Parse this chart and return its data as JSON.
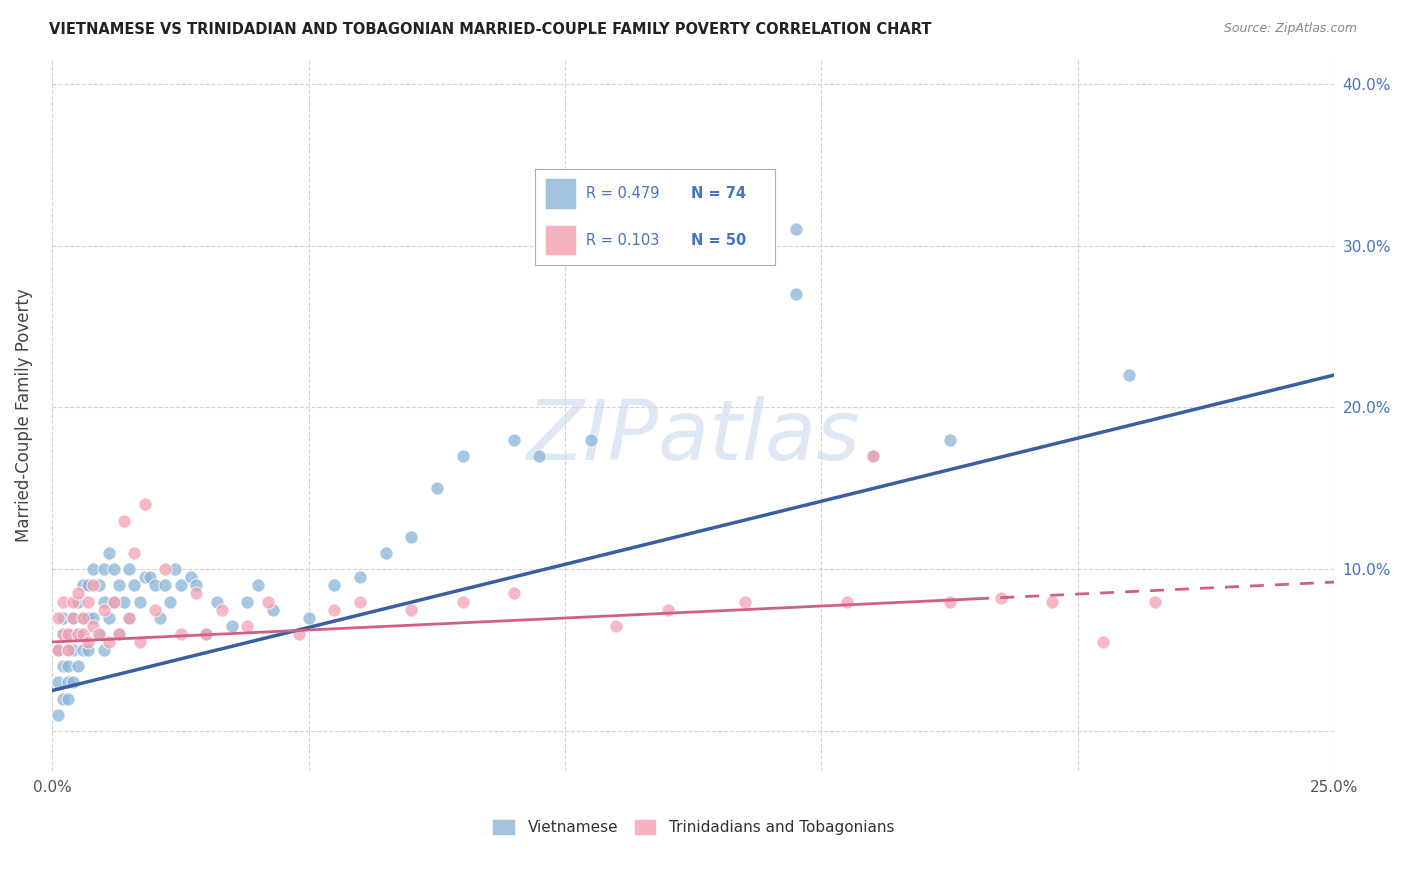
{
  "title": "VIETNAMESE VS TRINIDADIAN AND TOBAGONIAN MARRIED-COUPLE FAMILY POVERTY CORRELATION CHART",
  "source": "Source: ZipAtlas.com",
  "ylabel": "Married-Couple Family Poverty",
  "x_min": 0.0,
  "x_max": 0.25,
  "y_min": -0.025,
  "y_max": 0.415,
  "watermark_text": "ZIPatlas",
  "vietnamese_color": "#8ab4d8",
  "trinidadian_color": "#f4a0b0",
  "vietnamese_line_color": "#3a5fa0",
  "trinidadian_line_color": "#d06080",
  "background_color": "#ffffff",
  "grid_color": "#c8c8c8",
  "legend_text_color": "#4472C4",
  "legend_label_color": "#333333",
  "R_viet": 0.479,
  "N_viet": 74,
  "R_trin": 0.103,
  "N_trin": 50,
  "viet_line_x0": 0.0,
  "viet_line_y0": 0.025,
  "viet_line_x1": 0.25,
  "viet_line_y1": 0.22,
  "trin_line_x0": 0.0,
  "trin_line_y0": 0.055,
  "trin_line_x1": 0.25,
  "trin_line_y1": 0.092,
  "trin_dash_cutoff": 0.18,
  "viet_x": [
    0.001,
    0.001,
    0.001,
    0.002,
    0.002,
    0.002,
    0.002,
    0.003,
    0.003,
    0.003,
    0.003,
    0.003,
    0.004,
    0.004,
    0.004,
    0.005,
    0.005,
    0.005,
    0.006,
    0.006,
    0.006,
    0.007,
    0.007,
    0.007,
    0.008,
    0.008,
    0.009,
    0.009,
    0.01,
    0.01,
    0.01,
    0.011,
    0.011,
    0.012,
    0.012,
    0.013,
    0.013,
    0.014,
    0.015,
    0.015,
    0.016,
    0.017,
    0.018,
    0.019,
    0.02,
    0.021,
    0.022,
    0.023,
    0.024,
    0.025,
    0.027,
    0.028,
    0.03,
    0.032,
    0.035,
    0.038,
    0.04,
    0.043,
    0.05,
    0.055,
    0.06,
    0.065,
    0.07,
    0.075,
    0.08,
    0.09,
    0.095,
    0.105,
    0.13,
    0.145,
    0.145,
    0.16,
    0.175,
    0.21
  ],
  "viet_y": [
    0.05,
    0.03,
    0.01,
    0.06,
    0.04,
    0.02,
    0.07,
    0.04,
    0.02,
    0.06,
    0.05,
    0.03,
    0.07,
    0.05,
    0.03,
    0.08,
    0.06,
    0.04,
    0.09,
    0.07,
    0.05,
    0.09,
    0.07,
    0.05,
    0.1,
    0.07,
    0.09,
    0.06,
    0.1,
    0.08,
    0.05,
    0.11,
    0.07,
    0.1,
    0.08,
    0.09,
    0.06,
    0.08,
    0.1,
    0.07,
    0.09,
    0.08,
    0.095,
    0.095,
    0.09,
    0.07,
    0.09,
    0.08,
    0.1,
    0.09,
    0.095,
    0.09,
    0.06,
    0.08,
    0.065,
    0.08,
    0.09,
    0.075,
    0.07,
    0.09,
    0.095,
    0.11,
    0.12,
    0.15,
    0.17,
    0.18,
    0.17,
    0.18,
    0.31,
    0.31,
    0.27,
    0.17,
    0.18,
    0.22
  ],
  "trin_x": [
    0.001,
    0.001,
    0.002,
    0.002,
    0.003,
    0.003,
    0.004,
    0.004,
    0.005,
    0.005,
    0.006,
    0.006,
    0.007,
    0.007,
    0.008,
    0.008,
    0.009,
    0.01,
    0.011,
    0.012,
    0.013,
    0.014,
    0.015,
    0.016,
    0.017,
    0.018,
    0.02,
    0.022,
    0.025,
    0.028,
    0.03,
    0.033,
    0.038,
    0.042,
    0.048,
    0.055,
    0.06,
    0.07,
    0.08,
    0.09,
    0.11,
    0.12,
    0.135,
    0.155,
    0.16,
    0.175,
    0.185,
    0.195,
    0.205,
    0.215
  ],
  "trin_y": [
    0.05,
    0.07,
    0.06,
    0.08,
    0.06,
    0.05,
    0.07,
    0.08,
    0.06,
    0.085,
    0.06,
    0.07,
    0.055,
    0.08,
    0.065,
    0.09,
    0.06,
    0.075,
    0.055,
    0.08,
    0.06,
    0.13,
    0.07,
    0.11,
    0.055,
    0.14,
    0.075,
    0.1,
    0.06,
    0.085,
    0.06,
    0.075,
    0.065,
    0.08,
    0.06,
    0.075,
    0.08,
    0.075,
    0.08,
    0.085,
    0.065,
    0.075,
    0.08,
    0.08,
    0.17,
    0.08,
    0.082,
    0.08,
    0.055,
    0.08
  ]
}
